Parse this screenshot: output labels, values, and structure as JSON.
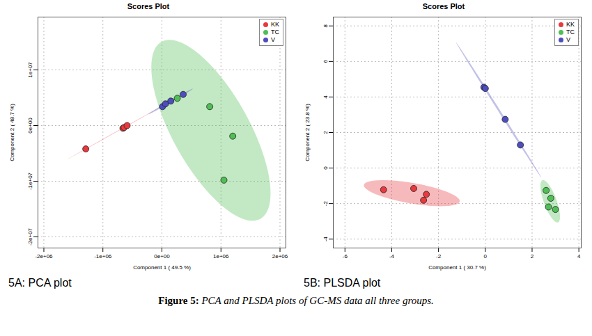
{
  "chart_data": [
    {
      "type": "scatter",
      "title": "Scores Plot",
      "panel_label": "5A: PCA plot",
      "x_label": "Component 1 ( 49.5 %)",
      "y_label": "Component 2 ( 48.7 %)",
      "xlim": [
        -2100000,
        2100000
      ],
      "ylim": [
        -22000000,
        19500000
      ],
      "xticks": [
        {
          "value": -2000000,
          "label": "-2e+06"
        },
        {
          "value": -1000000,
          "label": "-1e+06"
        },
        {
          "value": 0,
          "label": "0e+00"
        },
        {
          "value": 1000000,
          "label": "1e+06"
        },
        {
          "value": 2000000,
          "label": "2e+06"
        }
      ],
      "yticks": [
        {
          "value": -20000000,
          "label": "-2e+07"
        },
        {
          "value": -10000000,
          "label": "-1e+07"
        },
        {
          "value": 0,
          "label": "0e+00"
        },
        {
          "value": 10000000,
          "label": "1e+07"
        }
      ],
      "grid": true,
      "legend": "top-right",
      "marker": "circle",
      "series": [
        {
          "name": "KK",
          "color": "#e8393e",
          "x": [
            -1290000,
            -660000,
            -640000,
            -590000
          ],
          "y": [
            -4200000,
            -470000,
            -350000,
            0
          ]
        },
        {
          "name": "TC",
          "color": "#4fbf55",
          "x": [
            260000,
            810000,
            1200000,
            1050000
          ],
          "y": [
            4900000,
            3400000,
            -1900000,
            -9800000
          ]
        },
        {
          "name": "V",
          "color": "#4d4dbf",
          "x": [
            10000,
            60000,
            150000,
            360000
          ],
          "y": [
            3400000,
            3900000,
            4400000,
            5600000
          ]
        }
      ]
    },
    {
      "type": "scatter",
      "title": "Scores Plot",
      "panel_label": "5B: PLSDA plot",
      "x_label": "Component 1 ( 30.7 %)",
      "y_label": "Component 2 ( 23.8 %)",
      "xlim": [
        -6.5,
        4.1
      ],
      "ylim": [
        -4.5,
        8.5
      ],
      "xticks": [
        -6,
        -4,
        -2,
        0,
        2,
        4
      ],
      "yticks": [
        -4,
        -2,
        0,
        2,
        4,
        6,
        8
      ],
      "grid": true,
      "legend": "top-right",
      "marker": "circle",
      "series": [
        {
          "name": "KK",
          "color": "#e8393e",
          "x": [
            -4.35,
            -3.06,
            -2.52,
            -2.64
          ],
          "y": [
            -1.22,
            -1.15,
            -1.48,
            -1.81
          ]
        },
        {
          "name": "TC",
          "color": "#4fbf55",
          "x": [
            2.6,
            2.7,
            2.8,
            3.0
          ],
          "y": [
            -1.26,
            -2.19,
            -1.7,
            -2.33
          ]
        },
        {
          "name": "V",
          "color": "#4d4dbf",
          "x": [
            -0.06,
            0.0,
            0.85,
            1.5
          ],
          "y": [
            4.55,
            4.48,
            2.74,
            1.3
          ]
        }
      ]
    }
  ],
  "caption_label": "Figure 5:",
  "caption": "PCA and PLSDA plots of GC-MS data all three groups."
}
